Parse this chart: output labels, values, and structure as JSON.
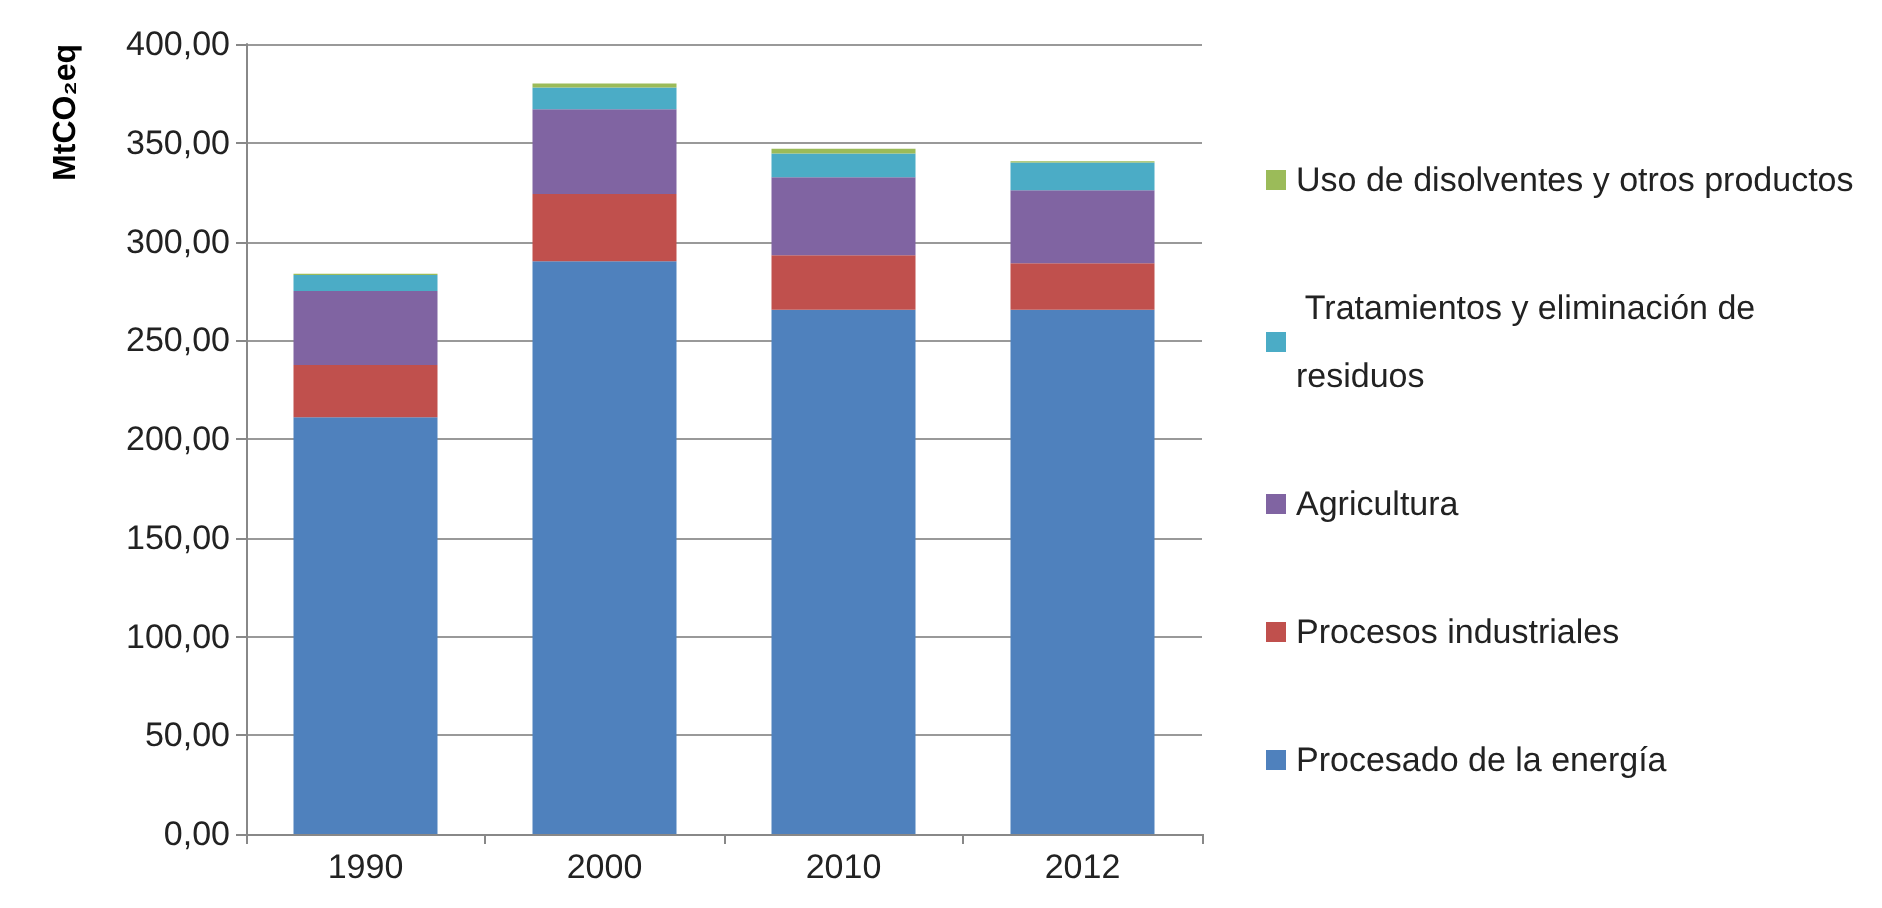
{
  "chart_data": {
    "type": "bar",
    "stacked": true,
    "ylabel": "MtCO₂eq",
    "categories": [
      "1990",
      "2000",
      "2010",
      "2012"
    ],
    "series": [
      {
        "name": "Procesado de la energía",
        "color": "#4f81bd",
        "values": [
          211,
          290,
          265.5,
          265.5
        ]
      },
      {
        "name": "Procesos industriales",
        "color": "#c0504d",
        "values": [
          26.5,
          34,
          27.5,
          23.5
        ]
      },
      {
        "name": "Agricultura",
        "color": "#8064a2",
        "values": [
          37.5,
          43,
          39.5,
          37
        ]
      },
      {
        "name": " Tratamientos y eliminación de residuos",
        "color": "#4bacc6",
        "values": [
          8,
          11,
          12,
          14
        ]
      },
      {
        "name": "Uso de disolventes y otros productos",
        "color": "#9bbb59",
        "values": [
          0.7,
          2,
          2.5,
          0.6
        ]
      }
    ],
    "ylim": [
      0,
      400
    ],
    "yticks": [
      {
        "value": 0,
        "label": "0,00"
      },
      {
        "value": 50,
        "label": "50,00"
      },
      {
        "value": 100,
        "label": "100,00"
      },
      {
        "value": 150,
        "label": "150,00"
      },
      {
        "value": 200,
        "label": "200,00"
      },
      {
        "value": 250,
        "label": "250,00"
      },
      {
        "value": 300,
        "label": "300,00"
      },
      {
        "value": 350,
        "label": "350,00"
      },
      {
        "value": 400,
        "label": "400,00"
      }
    ],
    "grid": "y",
    "legend": "right"
  }
}
